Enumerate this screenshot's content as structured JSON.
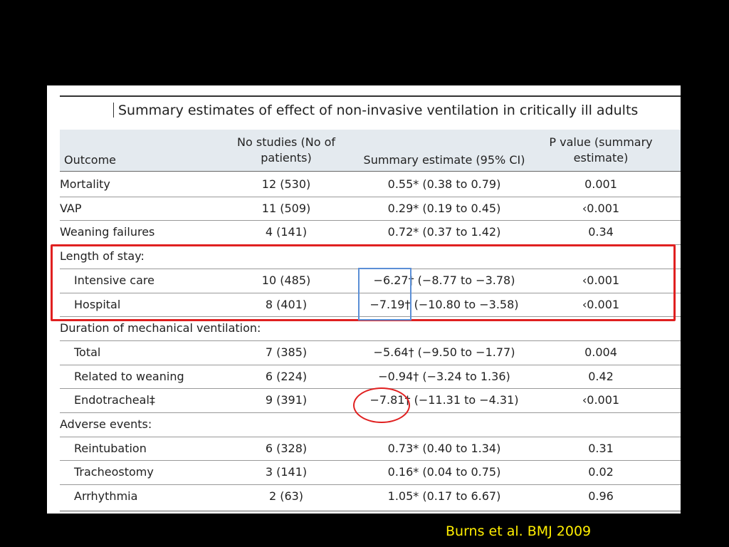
{
  "title": "Summary estimates of effect of non-invasive ventilation in critically ill adults",
  "headers": {
    "outcome": "Outcome",
    "studies": [
      "No studies (No of",
      "patients)"
    ],
    "estimate": "Summary estimate (95% CI)",
    "p_value": [
      "P value (summary",
      "estimate)"
    ]
  },
  "rows": [
    {
      "outcome": "Mortality",
      "studies": "12 (530)",
      "estimate": "0.55* (0.38 to 0.79)",
      "p": "0.001"
    },
    {
      "outcome": "VAP",
      "studies": "11 (509)",
      "estimate": "0.29* (0.19 to 0.45)",
      "p": "‹0.001"
    },
    {
      "outcome": "Weaning failures",
      "studies": "4 (141)",
      "estimate": "0.72* (0.37 to 1.42)",
      "p": "0.34"
    },
    {
      "outcome": "Length of stay:",
      "studies": "",
      "estimate": "",
      "p": ""
    },
    {
      "outcome": "Intensive care",
      "studies": "10 (485)",
      "estimate": "−6.27† (−8.77 to −3.78)",
      "p": "‹0.001"
    },
    {
      "outcome": "Hospital",
      "studies": "8 (401)",
      "estimate": "−7.19† (−10.80 to −3.58)",
      "p": "‹0.001"
    },
    {
      "outcome": "Duration of mechanical ventilation:",
      "studies": "",
      "estimate": "",
      "p": ""
    },
    {
      "outcome": "Total",
      "studies": "7 (385)",
      "estimate": "−5.64† (−9.50 to −1.77)",
      "p": "0.004"
    },
    {
      "outcome": "Related to weaning",
      "studies": "6 (224)",
      "estimate": "−0.94† (−3.24 to 1.36)",
      "p": "0.42"
    },
    {
      "outcome": "Endotracheal‡",
      "studies": "9 (391)",
      "estimate": "−7.81† (−11.31 to −4.31)",
      "p": "‹0.001"
    },
    {
      "outcome": "Adverse events:",
      "studies": "",
      "estimate": "",
      "p": ""
    },
    {
      "outcome": "Reintubation",
      "studies": "6 (328)",
      "estimate": "0.73* (0.40 to 1.34)",
      "p": "0.31"
    },
    {
      "outcome": "Tracheostomy",
      "studies": "3 (141)",
      "estimate": "0.16* (0.04 to 0.75)",
      "p": "0.02"
    },
    {
      "outcome": "Arrhythmia",
      "studies": "2 (63)",
      "estimate": "1.05* (0.17 to 6.67)",
      "p": "0.96"
    }
  ],
  "citation": "Burns et al. BMJ 2009",
  "colors": {
    "highlight_red": "#e02020",
    "highlight_blue": "#5b8fd6",
    "citation": "#ffee00"
  }
}
